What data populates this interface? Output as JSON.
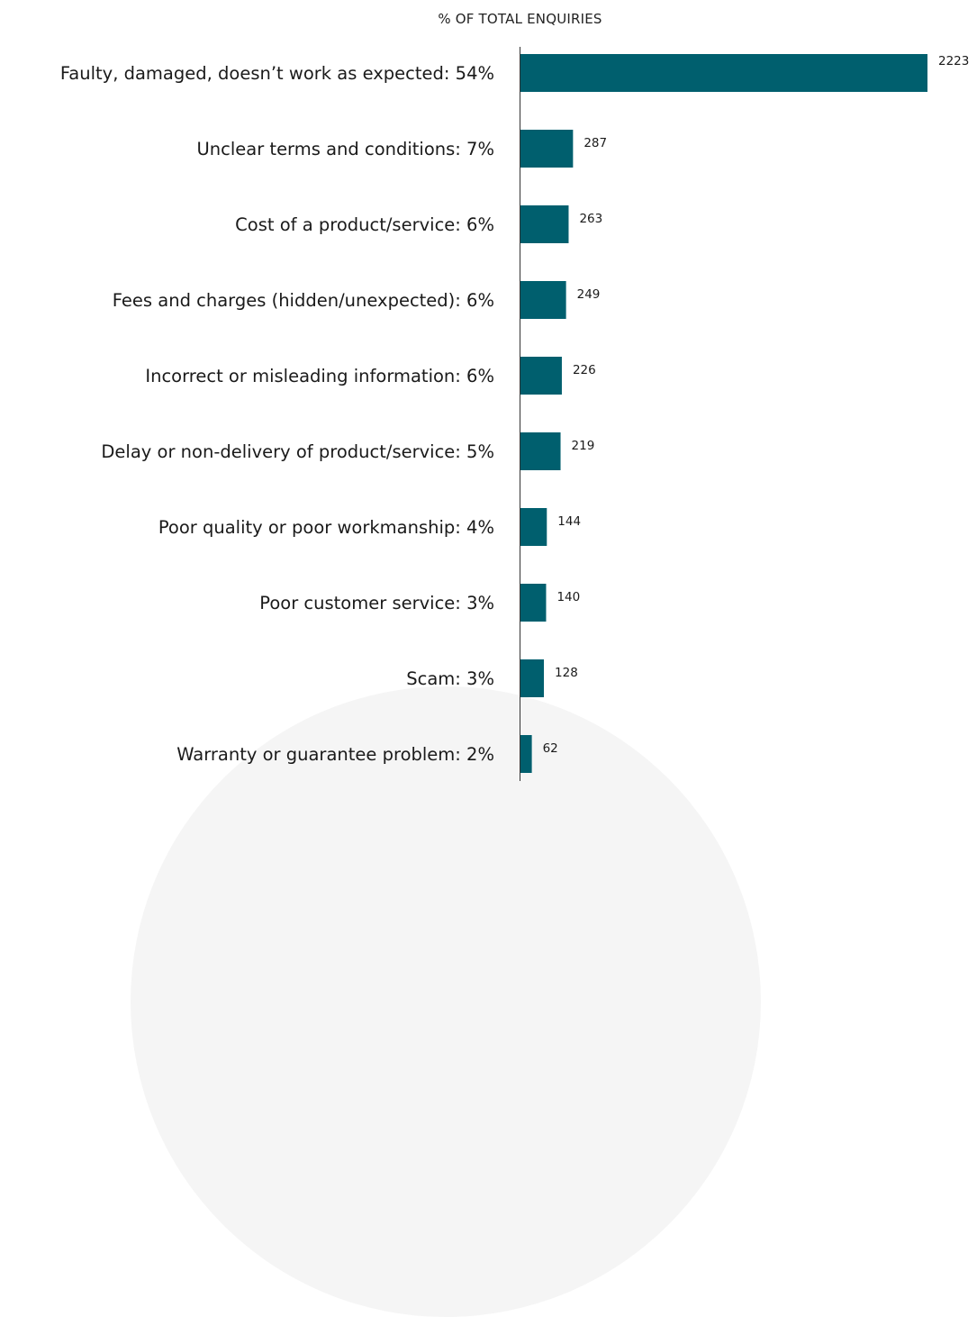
{
  "chart_data": {
    "type": "bar",
    "orientation": "horizontal",
    "title": "% OF TOTAL ENQUIRIES",
    "categories": [
      "Faulty, damaged, doesn’t work as expected: 54%",
      "Unclear terms and conditions: 7%",
      "Cost of a product/service: 6%",
      "Fees and charges (hidden/unexpected): 6%",
      "Incorrect or misleading information: 6%",
      "Delay or non-delivery of product/service: 5%",
      "Poor quality or poor workmanship: 4%",
      "Poor customer service: 3%",
      "Scam: 3%",
      "Warranty or guarantee problem: 2%"
    ],
    "values": [
      2223,
      287,
      263,
      249,
      226,
      219,
      144,
      140,
      128,
      62
    ],
    "xlim": [
      0,
      2223
    ],
    "grid": false,
    "legend": "none",
    "bar_color": "#005f6e"
  }
}
